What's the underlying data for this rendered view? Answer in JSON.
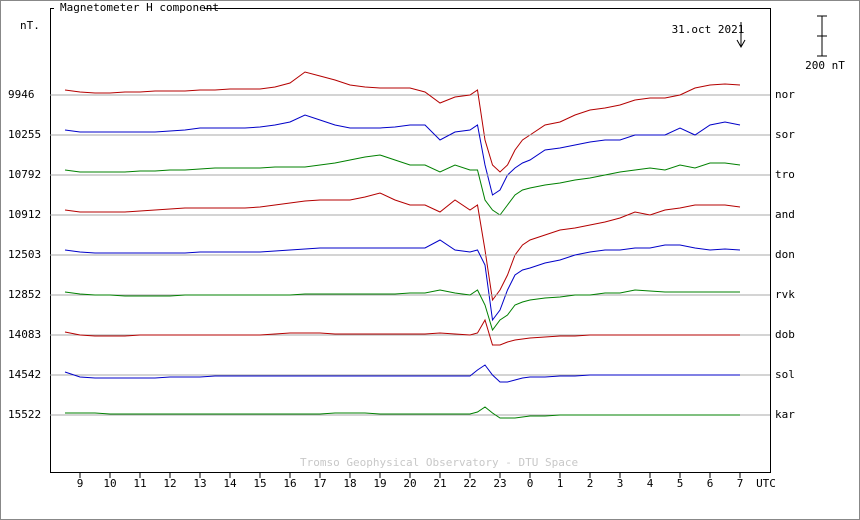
{
  "chart_data": {
    "type": "stackplot",
    "title": "Magnetometer H component",
    "y_unit": "nT.",
    "date_label": "31.oct 2021",
    "scale_bar": {
      "value": 200,
      "label": "200 nT"
    },
    "credit": "Tromso Geophysical Observatory - DTU Space",
    "x_label": "UTC",
    "xlim": [
      8,
      32
    ],
    "xticks": [
      9,
      10,
      11,
      12,
      13,
      14,
      15,
      16,
      17,
      18,
      19,
      20,
      21,
      22,
      23,
      {
        "value": 24,
        "label": "0"
      },
      {
        "value": 25,
        "label": "1"
      },
      {
        "value": 26,
        "label": "2"
      },
      {
        "value": 27,
        "label": "3"
      },
      {
        "value": 28,
        "label": "4"
      },
      {
        "value": 29,
        "label": "5"
      },
      {
        "value": 30,
        "label": "6"
      },
      {
        "value": 31,
        "label": "7"
      }
    ],
    "x": [
      8.5,
      9,
      9.5,
      10,
      10.5,
      11,
      11.5,
      12,
      12.5,
      13,
      13.5,
      14,
      14.5,
      15,
      15.5,
      16,
      16.5,
      17,
      17.5,
      18,
      18.5,
      19,
      19.5,
      20,
      20.5,
      21,
      21.5,
      22,
      22.25,
      22.5,
      22.75,
      23,
      23.25,
      23.5,
      23.75,
      24,
      24.5,
      25,
      25.5,
      26,
      26.5,
      27,
      27.5,
      28,
      28.5,
      29,
      29.5,
      30,
      30.5,
      31
    ],
    "series": [
      {
        "name": "nor",
        "color": "#b40000",
        "baseline": 9946,
        "values": [
          9971,
          9961,
          9956,
          9956,
          9961,
          9961,
          9966,
          9966,
          9966,
          9971,
          9971,
          9976,
          9976,
          9976,
          9986,
          10006,
          10061,
          10041,
          10021,
          9996,
          9986,
          9981,
          9981,
          9981,
          9961,
          9906,
          9936,
          9946,
          9971,
          9721,
          9596,
          9561,
          9596,
          9671,
          9721,
          9746,
          9796,
          9811,
          9846,
          9871,
          9881,
          9896,
          9921,
          9931,
          9931,
          9946,
          9981,
          9996,
          10001,
          9996
        ]
      },
      {
        "name": "sor",
        "color": "#0000c8",
        "baseline": 10255,
        "values": [
          10280,
          10270,
          10270,
          10270,
          10270,
          10270,
          10270,
          10275,
          10280,
          10290,
          10290,
          10290,
          10290,
          10295,
          10305,
          10320,
          10355,
          10330,
          10305,
          10290,
          10290,
          10290,
          10295,
          10305,
          10305,
          10230,
          10270,
          10280,
          10305,
          10105,
          9955,
          9980,
          10055,
          10090,
          10115,
          10130,
          10180,
          10190,
          10205,
          10220,
          10230,
          10230,
          10255,
          10255,
          10255,
          10290,
          10255,
          10305,
          10320,
          10305
        ]
      },
      {
        "name": "tro",
        "color": "#008000",
        "baseline": 10792,
        "values": [
          10817,
          10807,
          10807,
          10807,
          10807,
          10812,
          10812,
          10817,
          10817,
          10822,
          10827,
          10827,
          10827,
          10827,
          10832,
          10832,
          10832,
          10842,
          10852,
          10867,
          10882,
          10892,
          10867,
          10842,
          10842,
          10807,
          10842,
          10817,
          10817,
          10667,
          10617,
          10592,
          10642,
          10692,
          10717,
          10727,
          10742,
          10752,
          10767,
          10777,
          10792,
          10807,
          10817,
          10827,
          10817,
          10842,
          10827,
          10852,
          10852,
          10842
        ]
      },
      {
        "name": "and",
        "color": "#b40000",
        "baseline": 10912,
        "values": [
          10937,
          10927,
          10927,
          10927,
          10927,
          10932,
          10937,
          10942,
          10947,
          10947,
          10947,
          10947,
          10947,
          10952,
          10962,
          10972,
          10982,
          10987,
          10987,
          10987,
          11002,
          11022,
          10987,
          10962,
          10962,
          10927,
          10987,
          10937,
          10962,
          10737,
          10487,
          10537,
          10612,
          10712,
          10762,
          10787,
          10812,
          10837,
          10847,
          10862,
          10877,
          10897,
          10927,
          10912,
          10937,
          10947,
          10962,
          10962,
          10962,
          10952
        ]
      },
      {
        "name": "don",
        "color": "#0000c8",
        "baseline": 12503,
        "values": [
          12528,
          12518,
          12513,
          12513,
          12513,
          12513,
          12513,
          12513,
          12513,
          12518,
          12518,
          12518,
          12518,
          12518,
          12523,
          12528,
          12533,
          12538,
          12538,
          12538,
          12538,
          12538,
          12538,
          12538,
          12538,
          12578,
          12528,
          12518,
          12528,
          12453,
          12178,
          12228,
          12328,
          12403,
          12428,
          12438,
          12463,
          12478,
          12503,
          12518,
          12528,
          12528,
          12538,
          12538,
          12553,
          12553,
          12538,
          12528,
          12533,
          12528
        ]
      },
      {
        "name": "rvk",
        "color": "#008000",
        "baseline": 12852,
        "values": [
          12867,
          12857,
          12852,
          12852,
          12847,
          12847,
          12847,
          12847,
          12852,
          12852,
          12852,
          12852,
          12852,
          12852,
          12852,
          12852,
          12857,
          12857,
          12857,
          12857,
          12857,
          12857,
          12857,
          12862,
          12862,
          12877,
          12862,
          12852,
          12877,
          12802,
          12677,
          12727,
          12752,
          12802,
          12817,
          12827,
          12837,
          12842,
          12852,
          12852,
          12862,
          12862,
          12877,
          12872,
          12867,
          12867,
          12867,
          12867,
          12867,
          12867
        ]
      },
      {
        "name": "dob",
        "color": "#b40000",
        "baseline": 14083,
        "values": [
          14098,
          14083,
          14078,
          14078,
          14078,
          14083,
          14083,
          14083,
          14083,
          14083,
          14083,
          14083,
          14083,
          14083,
          14088,
          14093,
          14093,
          14093,
          14088,
          14088,
          14088,
          14088,
          14088,
          14088,
          14088,
          14093,
          14088,
          14083,
          14093,
          14158,
          14033,
          14033,
          14048,
          14058,
          14063,
          14068,
          14073,
          14078,
          14078,
          14083,
          14083,
          14083,
          14083,
          14083,
          14083,
          14083,
          14083,
          14083,
          14083,
          14083
        ]
      },
      {
        "name": "sol",
        "color": "#0000c8",
        "baseline": 14542,
        "values": [
          14557,
          14532,
          14527,
          14527,
          14527,
          14527,
          14527,
          14532,
          14532,
          14532,
          14537,
          14537,
          14537,
          14537,
          14537,
          14537,
          14537,
          14537,
          14537,
          14537,
          14537,
          14537,
          14537,
          14537,
          14537,
          14537,
          14537,
          14537,
          14567,
          14592,
          14542,
          14507,
          14507,
          14517,
          14527,
          14532,
          14532,
          14537,
          14537,
          14542,
          14542,
          14542,
          14542,
          14542,
          14542,
          14542,
          14542,
          14542,
          14542,
          14542
        ]
      },
      {
        "name": "kar",
        "color": "#008000",
        "baseline": 15522,
        "values": [
          15532,
          15532,
          15532,
          15527,
          15527,
          15527,
          15527,
          15527,
          15527,
          15527,
          15527,
          15527,
          15527,
          15527,
          15527,
          15527,
          15527,
          15527,
          15532,
          15532,
          15532,
          15527,
          15527,
          15527,
          15527,
          15527,
          15527,
          15527,
          15537,
          15562,
          15532,
          15507,
          15507,
          15507,
          15512,
          15517,
          15517,
          15522,
          15522,
          15522,
          15522,
          15522,
          15522,
          15522,
          15522,
          15522,
          15522,
          15522,
          15522,
          15522
        ]
      }
    ]
  }
}
